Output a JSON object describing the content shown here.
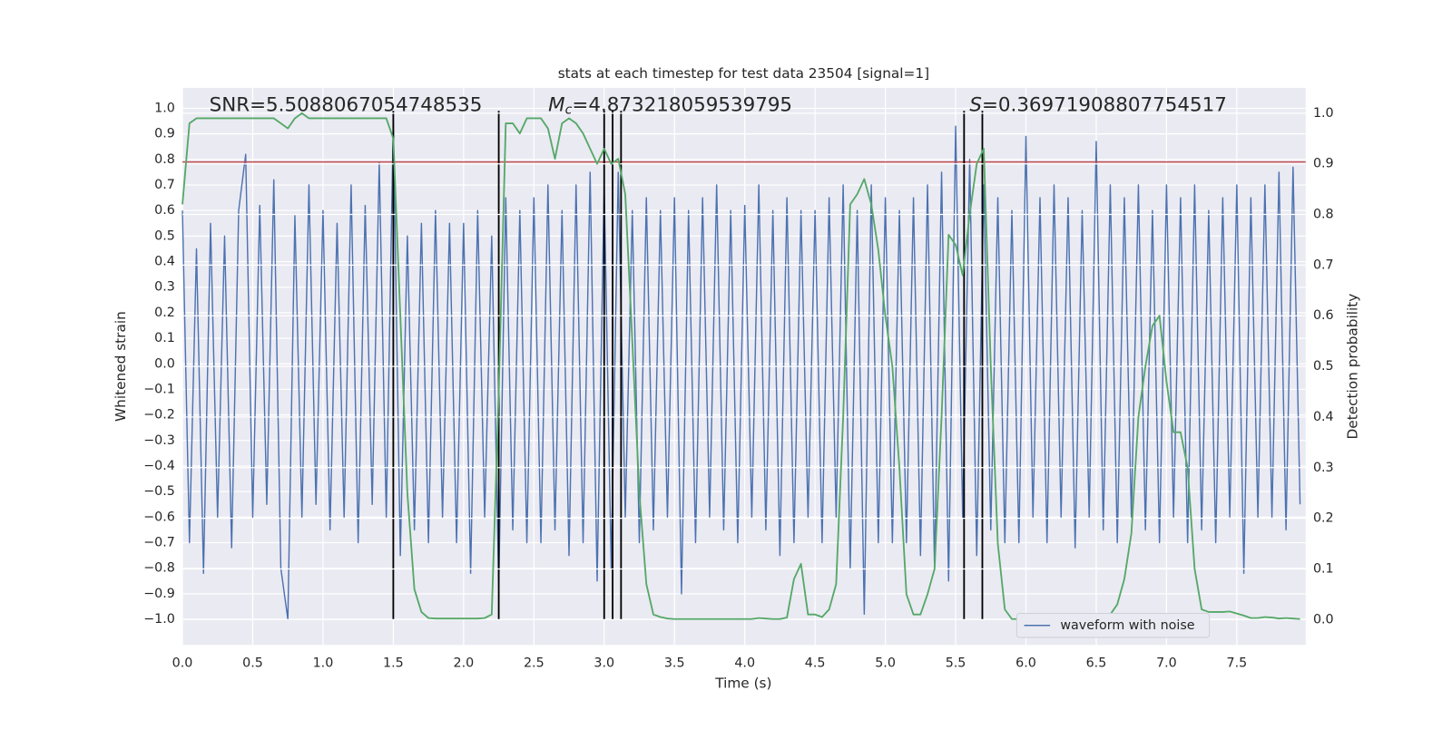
{
  "chart_data": {
    "type": "line",
    "title": "stats at each timestep for test data 23504 [signal=1]",
    "xlabel": "Time (s)",
    "ylabel": "Whitened strain",
    "y2label": "Detection probability",
    "grid": true,
    "legend": "lower right",
    "xlim": [
      0,
      7.99
    ],
    "ylim": [
      -1.1,
      1.08
    ],
    "y2lim": [
      -0.05,
      1.05
    ],
    "xticks": [
      {
        "value": 0,
        "label": "0.0"
      },
      {
        "value": 0.5,
        "label": "0.5"
      },
      {
        "value": 1,
        "label": "1.0"
      },
      {
        "value": 1.5,
        "label": "1.5"
      },
      {
        "value": 2,
        "label": "2.0"
      },
      {
        "value": 2.5,
        "label": "2.5"
      },
      {
        "value": 3,
        "label": "3.0"
      },
      {
        "value": 3.5,
        "label": "3.5"
      },
      {
        "value": 4,
        "label": "4.0"
      },
      {
        "value": 4.5,
        "label": "4.5"
      },
      {
        "value": 5,
        "label": "5.0"
      },
      {
        "value": 5.5,
        "label": "5.5"
      },
      {
        "value": 6,
        "label": "6.0"
      },
      {
        "value": 6.5,
        "label": "6.5"
      },
      {
        "value": 7,
        "label": "7.0"
      },
      {
        "value": 7.5,
        "label": "7.5"
      }
    ],
    "yticks": [
      {
        "value": -1,
        "label": "−1.0"
      },
      {
        "value": -0.9,
        "label": "−0.9"
      },
      {
        "value": -0.8,
        "label": "−0.8"
      },
      {
        "value": -0.7,
        "label": "−0.7"
      },
      {
        "value": -0.6,
        "label": "−0.6"
      },
      {
        "value": -0.5,
        "label": "−0.5"
      },
      {
        "value": -0.4,
        "label": "−0.4"
      },
      {
        "value": -0.3,
        "label": "−0.3"
      },
      {
        "value": -0.2,
        "label": "−0.2"
      },
      {
        "value": -0.1,
        "label": "−0.1"
      },
      {
        "value": 0,
        "label": "0.0"
      },
      {
        "value": 0.1,
        "label": "0.1"
      },
      {
        "value": 0.2,
        "label": "0.2"
      },
      {
        "value": 0.3,
        "label": "0.3"
      },
      {
        "value": 0.4,
        "label": "0.4"
      },
      {
        "value": 0.5,
        "label": "0.5"
      },
      {
        "value": 0.6,
        "label": "0.6"
      },
      {
        "value": 0.7,
        "label": "0.7"
      },
      {
        "value": 0.8,
        "label": "0.8"
      },
      {
        "value": 0.9,
        "label": "0.9"
      },
      {
        "value": 1,
        "label": "1.0"
      }
    ],
    "y2ticks": [
      {
        "value": 0,
        "label": "0.0"
      },
      {
        "value": 0.1,
        "label": "0.1"
      },
      {
        "value": 0.2,
        "label": "0.2"
      },
      {
        "value": 0.3,
        "label": "0.3"
      },
      {
        "value": 0.4,
        "label": "0.4"
      },
      {
        "value": 0.5,
        "label": "0.5"
      },
      {
        "value": 0.6,
        "label": "0.6"
      },
      {
        "value": 0.7,
        "label": "0.7"
      },
      {
        "value": 0.8,
        "label": "0.8"
      },
      {
        "value": 0.9,
        "label": "0.9"
      },
      {
        "value": 1,
        "label": "1.0"
      }
    ],
    "x": [
      0,
      0.05,
      0.1,
      0.15,
      0.2,
      0.25,
      0.3,
      0.35,
      0.4,
      0.45,
      0.5,
      0.55,
      0.6,
      0.65,
      0.7,
      0.75,
      0.8,
      0.85,
      0.9,
      0.95,
      1,
      1.05,
      1.1,
      1.15,
      1.2,
      1.25,
      1.3,
      1.35,
      1.4,
      1.45,
      1.5,
      1.55,
      1.6,
      1.65,
      1.7,
      1.75,
      1.8,
      1.85,
      1.9,
      1.95,
      2,
      2.05,
      2.1,
      2.15,
      2.2,
      2.25,
      2.3,
      2.35,
      2.4,
      2.45,
      2.5,
      2.55,
      2.6,
      2.65,
      2.7,
      2.75,
      2.8,
      2.85,
      2.9,
      2.95,
      3,
      3.05,
      3.1,
      3.15,
      3.2,
      3.25,
      3.3,
      3.35,
      3.4,
      3.45,
      3.5,
      3.55,
      3.6,
      3.65,
      3.7,
      3.75,
      3.8,
      3.85,
      3.9,
      3.95,
      4,
      4.05,
      4.1,
      4.15,
      4.2,
      4.25,
      4.3,
      4.35,
      4.4,
      4.45,
      4.5,
      4.55,
      4.6,
      4.65,
      4.7,
      4.75,
      4.8,
      4.85,
      4.9,
      4.95,
      5,
      5.05,
      5.1,
      5.15,
      5.2,
      5.25,
      5.3,
      5.35,
      5.4,
      5.45,
      5.5,
      5.55,
      5.6,
      5.65,
      5.7,
      5.75,
      5.8,
      5.85,
      5.9,
      5.95,
      6,
      6.05,
      6.1,
      6.15,
      6.2,
      6.25,
      6.3,
      6.35,
      6.4,
      6.45,
      6.5,
      6.55,
      6.6,
      6.65,
      6.7,
      6.75,
      6.8,
      6.85,
      6.9,
      6.95,
      7,
      7.05,
      7.1,
      7.15,
      7.2,
      7.25,
      7.3,
      7.35,
      7.4,
      7.45,
      7.5,
      7.55,
      7.6,
      7.65,
      7.7,
      7.75,
      7.8,
      7.85,
      7.9,
      7.95
    ],
    "series": [
      {
        "name": "waveform with noise",
        "color": "#4c72b0",
        "values": [
          0.6,
          -0.7,
          0.45,
          -0.82,
          0.55,
          -0.6,
          0.5,
          -0.72,
          0.6,
          0.82,
          -0.6,
          0.62,
          -0.55,
          0.72,
          -0.8,
          -1.0,
          0.58,
          -0.6,
          0.7,
          -0.55,
          0.6,
          -0.65,
          0.55,
          -0.6,
          0.7,
          -0.7,
          0.62,
          -0.55,
          0.79,
          -0.6,
          0.95,
          -0.75,
          0.5,
          -0.65,
          0.55,
          -0.7,
          0.6,
          -0.6,
          0.55,
          -0.7,
          0.55,
          -0.82,
          0.6,
          -0.6,
          0.5,
          -0.87,
          0.65,
          -0.65,
          0.6,
          -0.7,
          0.65,
          -0.7,
          0.7,
          -0.65,
          0.6,
          -0.75,
          0.7,
          -0.7,
          0.75,
          -0.85,
          0.7,
          -0.8,
          0.75,
          -0.6,
          0.6,
          -0.7,
          0.65,
          -0.65,
          0.6,
          -0.6,
          0.65,
          -0.9,
          0.6,
          -0.7,
          0.65,
          -0.6,
          0.7,
          -0.65,
          0.6,
          -0.7,
          0.62,
          -0.6,
          0.7,
          -0.65,
          0.6,
          -0.75,
          0.65,
          -0.7,
          0.6,
          -0.6,
          0.6,
          -0.7,
          0.65,
          -0.6,
          0.7,
          -0.8,
          0.6,
          -0.98,
          0.7,
          -0.7,
          0.65,
          -0.7,
          0.6,
          -0.7,
          0.65,
          -0.75,
          0.7,
          -0.8,
          0.75,
          -0.85,
          0.93,
          -0.6,
          0.8,
          -0.75,
          0.7,
          -0.65,
          0.65,
          -0.7,
          0.6,
          -0.7,
          0.89,
          -0.6,
          0.65,
          -0.7,
          0.7,
          -0.6,
          0.65,
          -0.72,
          0.6,
          -0.6,
          0.87,
          -0.65,
          0.7,
          -0.7,
          0.65,
          -0.6,
          0.7,
          -0.65,
          0.6,
          -0.7,
          0.7,
          -0.6,
          0.65,
          -0.7,
          0.7,
          -0.65,
          0.6,
          -0.7,
          0.65,
          -0.6,
          0.7,
          -0.82,
          0.65,
          -0.6,
          0.7,
          -0.6,
          0.75,
          -0.65,
          0.77,
          -0.55
        ]
      },
      {
        "color": "#55a868",
        "axis": "y2",
        "values": [
          0.82,
          0.98,
          0.99,
          0.99,
          0.99,
          0.99,
          0.99,
          0.99,
          0.99,
          0.99,
          0.99,
          0.99,
          0.99,
          0.99,
          0.98,
          0.97,
          0.99,
          1.0,
          0.99,
          0.99,
          0.99,
          0.99,
          0.99,
          0.99,
          0.99,
          0.99,
          0.99,
          0.99,
          0.99,
          0.99,
          0.95,
          0.6,
          0.25,
          0.06,
          0.015,
          0.003,
          0.002,
          0.002,
          0.002,
          0.002,
          0.002,
          0.002,
          0.002,
          0.003,
          0.01,
          0.45,
          0.98,
          0.98,
          0.96,
          0.99,
          0.99,
          0.99,
          0.97,
          0.91,
          0.98,
          0.99,
          0.98,
          0.96,
          0.93,
          0.9,
          0.93,
          0.9,
          0.91,
          0.84,
          0.55,
          0.25,
          0.07,
          0.01,
          0.005,
          0.002,
          0.001,
          0.001,
          0.001,
          0.001,
          0.001,
          0.001,
          0.001,
          0.001,
          0.001,
          0.001,
          0.001,
          0.001,
          0.003,
          0.002,
          0.001,
          0.001,
          0.004,
          0.08,
          0.11,
          0.01,
          0.01,
          0.005,
          0.02,
          0.07,
          0.4,
          0.82,
          0.84,
          0.87,
          0.82,
          0.73,
          0.6,
          0.5,
          0.3,
          0.05,
          0.01,
          0.01,
          0.05,
          0.1,
          0.4,
          0.76,
          0.74,
          0.68,
          0.8,
          0.9,
          0.93,
          0.5,
          0.15,
          0.02,
          0.001,
          0.001,
          0.001,
          0.001,
          0.001,
          0.001,
          0.001,
          0.001,
          0.001,
          0.001,
          0.001,
          0.001,
          0.003,
          0.005,
          0.01,
          0.03,
          0.08,
          0.17,
          0.4,
          0.5,
          0.58,
          0.6,
          0.47,
          0.37,
          0.37,
          0.3,
          0.1,
          0.02,
          0.015,
          0.015,
          0.015,
          0.016,
          0.012,
          0.008,
          0.003,
          0.003,
          0.005,
          0.004,
          0.002,
          0.003,
          0.002,
          0.001
        ]
      }
    ],
    "hline": {
      "y": 0.79,
      "color": "#c44e52"
    },
    "vlines": {
      "x": [
        1.5,
        2.25,
        3.0,
        3.06,
        3.12,
        5.56,
        5.69
      ],
      "ymin": -1.0,
      "ymax": 0.99,
      "color": "#000000"
    },
    "annotations": [
      {
        "text": "SNR=5.5088067054748535"
      },
      {
        "symbol": "M",
        "subscript": "c",
        "text": "=4.873218059539795"
      },
      {
        "symbol": "S",
        "text": "=0.36971908807754517"
      }
    ]
  }
}
